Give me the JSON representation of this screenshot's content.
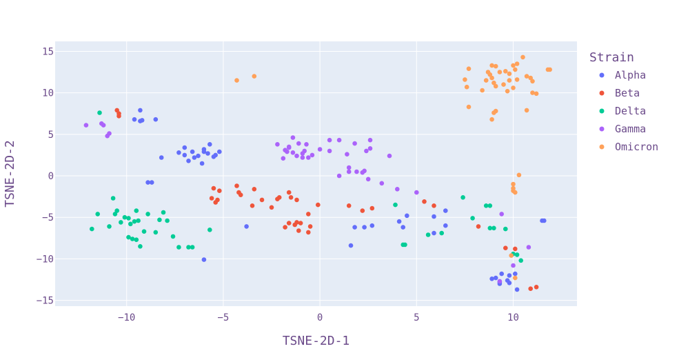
{
  "chart_data": {
    "type": "scatter",
    "title": "",
    "xlabel": "TSNE-2D-1",
    "ylabel": "TSNE-2D-2",
    "xlim": [
      -13.7,
      13.3
    ],
    "ylim": [
      -15.7,
      16.2
    ],
    "xticks": [
      -10,
      -5,
      0,
      5,
      10
    ],
    "yticks": [
      -15,
      -10,
      -5,
      0,
      5,
      10,
      15
    ],
    "grid": true,
    "plot_background": "#e5ecf6",
    "grid_color": "#ffffff",
    "legend": {
      "title": "Strain",
      "placement": "right"
    },
    "series": [
      {
        "name": "Alpha",
        "color": "#636efa",
        "points": [
          [
            -9.6,
            6.8
          ],
          [
            -9.3,
            7.9
          ],
          [
            -9.2,
            6.7
          ],
          [
            -9.3,
            6.6
          ],
          [
            -8.5,
            6.8
          ],
          [
            -7.3,
            2.8
          ],
          [
            -7.0,
            2.5
          ],
          [
            -6.6,
            2.9
          ],
          [
            -6.5,
            2.2
          ],
          [
            -6.3,
            2.4
          ],
          [
            -6.0,
            2.9
          ],
          [
            -5.8,
            2.7
          ],
          [
            -5.5,
            2.3
          ],
          [
            -5.2,
            2.9
          ],
          [
            -7.0,
            3.4
          ],
          [
            -6.0,
            3.2
          ],
          [
            -5.7,
            3.8
          ],
          [
            -6.8,
            1.8
          ],
          [
            -6.1,
            1.5
          ],
          [
            -8.2,
            2.2
          ],
          [
            -5.4,
            2.5
          ],
          [
            -8.9,
            -0.8
          ],
          [
            -8.7,
            -0.8
          ],
          [
            -3.8,
            -6.1
          ],
          [
            -6.0,
            -10.1
          ],
          [
            1.6,
            -8.4
          ],
          [
            1.8,
            -6.2
          ],
          [
            2.3,
            -6.2
          ],
          [
            2.7,
            -6.0
          ],
          [
            4.1,
            -5.5
          ],
          [
            4.3,
            -6.2
          ],
          [
            4.5,
            -4.8
          ],
          [
            5.9,
            -4.9
          ],
          [
            6.5,
            -4.2
          ],
          [
            6.5,
            -6.0
          ],
          [
            5.9,
            -6.9
          ],
          [
            9.1,
            -12.3
          ],
          [
            9.3,
            -12.8
          ],
          [
            9.4,
            -11.8
          ],
          [
            9.7,
            -12.6
          ],
          [
            9.8,
            -12.9
          ],
          [
            10.1,
            -11.8
          ],
          [
            10.2,
            -13.7
          ],
          [
            9.3,
            -13.0
          ],
          [
            8.9,
            -12.4
          ],
          [
            9.8,
            -12.0
          ],
          [
            11.5,
            -5.4
          ],
          [
            11.6,
            -5.4
          ]
        ]
      },
      {
        "name": "Beta",
        "color": "#ef553b",
        "points": [
          [
            -10.5,
            7.9
          ],
          [
            -10.4,
            7.5
          ],
          [
            -10.4,
            7.2
          ],
          [
            -5.5,
            -1.5
          ],
          [
            -5.6,
            -2.7
          ],
          [
            -5.3,
            -2.9
          ],
          [
            -5.4,
            -3.2
          ],
          [
            -5.2,
            -1.8
          ],
          [
            -4.3,
            -1.2
          ],
          [
            -4.2,
            -2.0
          ],
          [
            -4.1,
            -2.3
          ],
          [
            -3.5,
            -3.6
          ],
          [
            -3.4,
            -1.6
          ],
          [
            -3.0,
            -2.9
          ],
          [
            -2.5,
            -3.8
          ],
          [
            -2.1,
            -2.6
          ],
          [
            -1.6,
            -2.0
          ],
          [
            -1.5,
            -2.6
          ],
          [
            -1.2,
            -2.9
          ],
          [
            -0.1,
            -3.5
          ],
          [
            -2.2,
            -2.8
          ],
          [
            -1.8,
            -6.2
          ],
          [
            -1.6,
            -5.7
          ],
          [
            -1.3,
            -5.9
          ],
          [
            -1.1,
            -6.6
          ],
          [
            -1.2,
            -5.6
          ],
          [
            -0.6,
            -4.6
          ],
          [
            -0.5,
            -6.1
          ],
          [
            -0.6,
            -6.8
          ],
          [
            -1.0,
            -5.7
          ],
          [
            1.5,
            -3.6
          ],
          [
            2.2,
            -4.2
          ],
          [
            2.7,
            -3.9
          ],
          [
            5.4,
            -3.1
          ],
          [
            5.9,
            -3.6
          ],
          [
            8.2,
            -6.1
          ],
          [
            9.6,
            -8.7
          ],
          [
            10.1,
            -8.8
          ],
          [
            10.9,
            -13.6
          ],
          [
            11.2,
            -13.4
          ]
        ]
      },
      {
        "name": "Delta",
        "color": "#00cc96",
        "points": [
          [
            -11.4,
            7.6
          ],
          [
            -11.8,
            -6.4
          ],
          [
            -11.5,
            -4.6
          ],
          [
            -10.9,
            -6.1
          ],
          [
            -10.6,
            -4.6
          ],
          [
            -10.5,
            -4.2
          ],
          [
            -10.3,
            -5.6
          ],
          [
            -10.1,
            -5.0
          ],
          [
            -9.9,
            -5.1
          ],
          [
            -9.8,
            -5.8
          ],
          [
            -9.6,
            -5.5
          ],
          [
            -9.5,
            -4.2
          ],
          [
            -9.4,
            -5.4
          ],
          [
            -9.1,
            -6.7
          ],
          [
            -8.9,
            -4.6
          ],
          [
            -8.5,
            -6.8
          ],
          [
            -8.3,
            -5.3
          ],
          [
            -8.1,
            -4.4
          ],
          [
            -7.9,
            -5.4
          ],
          [
            -7.3,
            -8.6
          ],
          [
            -6.8,
            -8.6
          ],
          [
            -6.6,
            -8.6
          ],
          [
            -5.7,
            -6.5
          ],
          [
            -10.7,
            -2.7
          ],
          [
            -9.9,
            -7.4
          ],
          [
            -9.7,
            -7.6
          ],
          [
            -9.5,
            -7.7
          ],
          [
            -9.3,
            -8.5
          ],
          [
            -7.6,
            -7.3
          ],
          [
            3.9,
            -3.5
          ],
          [
            4.4,
            -8.3
          ],
          [
            4.3,
            -8.3
          ],
          [
            5.6,
            -7.1
          ],
          [
            6.3,
            -6.9
          ],
          [
            7.4,
            -2.6
          ],
          [
            7.9,
            -5.1
          ],
          [
            8.6,
            -3.6
          ],
          [
            8.8,
            -3.6
          ],
          [
            8.8,
            -6.3
          ],
          [
            9.0,
            -6.3
          ],
          [
            9.6,
            -6.4
          ],
          [
            10.0,
            -9.4
          ],
          [
            10.2,
            -9.5
          ],
          [
            10.4,
            -10.2
          ]
        ]
      },
      {
        "name": "Gamma",
        "color": "#ab63fa",
        "points": [
          [
            -12.1,
            6.1
          ],
          [
            -11.3,
            6.3
          ],
          [
            -11.2,
            6.1
          ],
          [
            -11.0,
            4.8
          ],
          [
            -10.9,
            5.1
          ],
          [
            -2.2,
            3.8
          ],
          [
            -1.9,
            2.1
          ],
          [
            -1.8,
            3.1
          ],
          [
            -1.6,
            3.5
          ],
          [
            -1.7,
            2.9
          ],
          [
            -1.4,
            4.6
          ],
          [
            -1.2,
            2.4
          ],
          [
            -1.1,
            3.9
          ],
          [
            -0.9,
            2.2
          ],
          [
            -0.8,
            3.0
          ],
          [
            -0.7,
            3.8
          ],
          [
            -0.6,
            2.2
          ],
          [
            -0.4,
            2.5
          ],
          [
            -1.4,
            2.8
          ],
          [
            -0.9,
            2.7
          ],
          [
            -1.6,
            3.4
          ],
          [
            0.0,
            3.2
          ],
          [
            0.5,
            4.3
          ],
          [
            0.5,
            3.0
          ],
          [
            1.0,
            4.3
          ],
          [
            1.4,
            2.6
          ],
          [
            1.8,
            3.9
          ],
          [
            2.4,
            3.0
          ],
          [
            2.6,
            4.3
          ],
          [
            2.6,
            3.3
          ],
          [
            3.6,
            2.4
          ],
          [
            1.0,
            0.0
          ],
          [
            1.5,
            1.0
          ],
          [
            1.5,
            0.5
          ],
          [
            1.9,
            0.5
          ],
          [
            2.2,
            0.4
          ],
          [
            2.3,
            0.6
          ],
          [
            2.5,
            -0.4
          ],
          [
            3.2,
            -0.9
          ],
          [
            4.0,
            -1.6
          ],
          [
            5.0,
            -2.0
          ],
          [
            9.4,
            -4.6
          ],
          [
            10.0,
            -10.8
          ],
          [
            10.8,
            -8.6
          ],
          [
            9.3,
            -12.7
          ]
        ]
      },
      {
        "name": "Omicron",
        "color": "#ffa15a",
        "points": [
          [
            -4.3,
            11.5
          ],
          [
            -3.4,
            12.0
          ],
          [
            7.5,
            11.6
          ],
          [
            7.7,
            12.9
          ],
          [
            7.6,
            10.7
          ],
          [
            7.7,
            8.3
          ],
          [
            8.4,
            10.3
          ],
          [
            8.6,
            11.5
          ],
          [
            8.8,
            12.2
          ],
          [
            8.9,
            13.3
          ],
          [
            8.9,
            11.8
          ],
          [
            9.0,
            11.2
          ],
          [
            9.1,
            13.2
          ],
          [
            9.1,
            10.8
          ],
          [
            9.3,
            12.5
          ],
          [
            9.5,
            11.0
          ],
          [
            9.6,
            12.6
          ],
          [
            9.7,
            10.2
          ],
          [
            9.8,
            12.3
          ],
          [
            10.0,
            13.3
          ],
          [
            10.1,
            12.8
          ],
          [
            10.2,
            13.5
          ],
          [
            10.2,
            11.6
          ],
          [
            10.5,
            14.3
          ],
          [
            10.7,
            12.0
          ],
          [
            10.9,
            11.8
          ],
          [
            11.0,
            11.4
          ],
          [
            11.0,
            10.0
          ],
          [
            11.2,
            9.9
          ],
          [
            11.8,
            12.8
          ],
          [
            9.0,
            7.6
          ],
          [
            9.1,
            7.8
          ],
          [
            8.9,
            6.8
          ],
          [
            10.7,
            7.9
          ],
          [
            8.7,
            12.5
          ],
          [
            9.8,
            11.5
          ],
          [
            10.0,
            10.6
          ],
          [
            11.9,
            12.8
          ],
          [
            10.0,
            -1.0
          ],
          [
            10.0,
            -1.5
          ],
          [
            10.0,
            -1.8
          ],
          [
            10.1,
            -2.0
          ],
          [
            10.3,
            0.1
          ],
          [
            10.1,
            -12.3
          ],
          [
            9.9,
            -9.6
          ]
        ]
      }
    ]
  }
}
